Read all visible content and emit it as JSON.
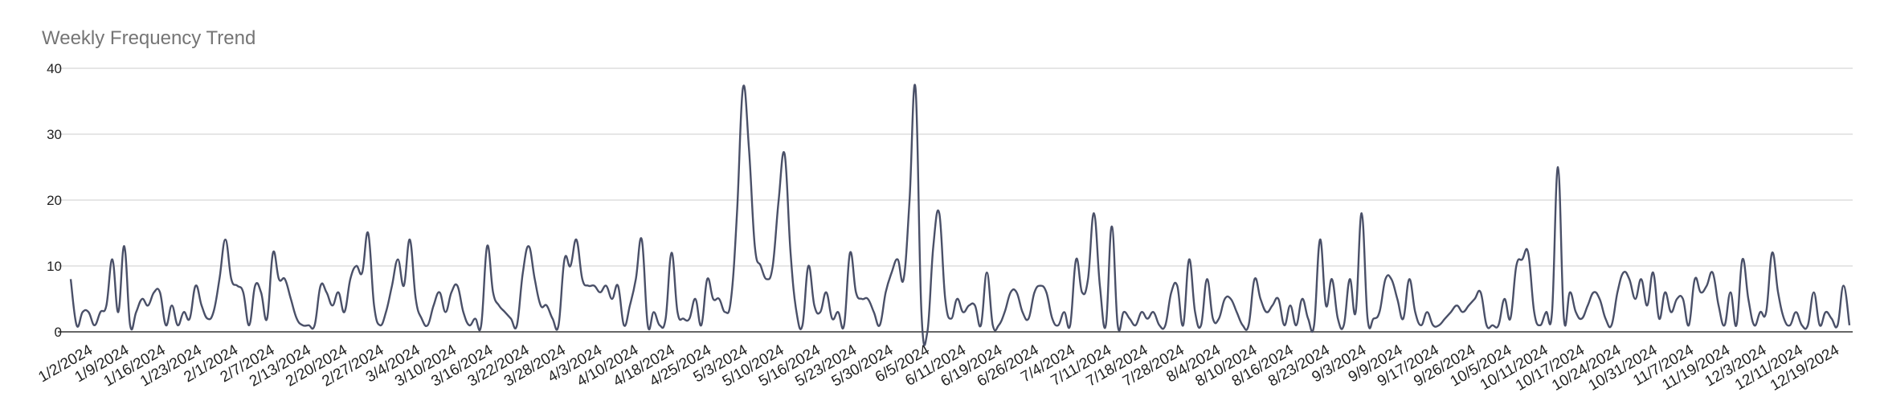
{
  "chart_data": {
    "type": "line",
    "title": "Weekly Frequency Trend",
    "xlabel": "",
    "ylabel": "",
    "ylim": [
      0,
      40
    ],
    "yticks": [
      0,
      10,
      20,
      30,
      40
    ],
    "grid": true,
    "legend": "none",
    "line_color": "#4a5068",
    "x_tick_labels": [
      "1/2/2024",
      "1/9/2024",
      "1/16/2024",
      "1/23/2024",
      "2/1/2024",
      "2/7/2024",
      "2/13/2024",
      "2/20/2024",
      "2/27/2024",
      "3/4/2024",
      "3/10/2024",
      "3/16/2024",
      "3/22/2024",
      "3/28/2024",
      "4/3/2024",
      "4/10/2024",
      "4/18/2024",
      "4/25/2024",
      "5/3/2024",
      "5/10/2024",
      "5/16/2024",
      "5/23/2024",
      "5/30/2024",
      "6/5/2024",
      "6/11/2024",
      "6/19/2024",
      "6/26/2024",
      "7/4/2024",
      "7/11/2024",
      "7/18/2024",
      "7/28/2024",
      "8/4/2024",
      "8/10/2024",
      "8/16/2024",
      "8/23/2024",
      "9/3/2024",
      "9/9/2024",
      "9/17/2024",
      "9/26/2024",
      "10/5/2024",
      "10/11/2024",
      "10/17/2024",
      "10/24/2024",
      "10/31/2024",
      "11/7/2024",
      "11/19/2024",
      "12/3/2024",
      "12/11/2024",
      "12/19/2024"
    ],
    "values": [
      8,
      1,
      3,
      3,
      1,
      3,
      4,
      11,
      3,
      13,
      1,
      3,
      5,
      4,
      6,
      6,
      1,
      4,
      1,
      3,
      2,
      7,
      4,
      2,
      3,
      8,
      14,
      8,
      7,
      6,
      1,
      7,
      6,
      2,
      12,
      8,
      8,
      5,
      2,
      1,
      1,
      1,
      7,
      6,
      4,
      6,
      3,
      8,
      10,
      9,
      15,
      4,
      1,
      3,
      7,
      11,
      7,
      14,
      5,
      2,
      1,
      4,
      6,
      3,
      6,
      7,
      3,
      1,
      2,
      1,
      13,
      6,
      4,
      3,
      2,
      1,
      9,
      13,
      8,
      4,
      4,
      2,
      1,
      11,
      10,
      14,
      8,
      7,
      7,
      6,
      7,
      5,
      7,
      1,
      4,
      8,
      14,
      1,
      3,
      1,
      2,
      12,
      3,
      2,
      2,
      5,
      1,
      8,
      5,
      5,
      3,
      5,
      18,
      37,
      28,
      13,
      10,
      8,
      10,
      20,
      27,
      12,
      3,
      1,
      10,
      4,
      3,
      6,
      2,
      3,
      1,
      12,
      6,
      5,
      5,
      3,
      1,
      6,
      9,
      11,
      8,
      20,
      37,
      3,
      0,
      13,
      18,
      5,
      2,
      5,
      3,
      4,
      4,
      1,
      9,
      1,
      1,
      3,
      6,
      6,
      3,
      2,
      6,
      7,
      6,
      2,
      1,
      3,
      1,
      11,
      6,
      8,
      18,
      7,
      1,
      16,
      1,
      3,
      2,
      1,
      3,
      2,
      3,
      1,
      1,
      6,
      7,
      1,
      11,
      3,
      1,
      8,
      2,
      2,
      5,
      5,
      3,
      1,
      1,
      8,
      5,
      3,
      4,
      5,
      1,
      4,
      1,
      5,
      2,
      1,
      14,
      4,
      8,
      2,
      1,
      8,
      3,
      18,
      2,
      2,
      3,
      8,
      8,
      5,
      2,
      8,
      3,
      1,
      3,
      1,
      1,
      2,
      3,
      4,
      3,
      4,
      5,
      6,
      1,
      1,
      1,
      5,
      2,
      10,
      11,
      12,
      3,
      1,
      3,
      3,
      25,
      2,
      6,
      3,
      2,
      4,
      6,
      5,
      2,
      1,
      6,
      9,
      8,
      5,
      8,
      4,
      9,
      2,
      6,
      3,
      5,
      5,
      1,
      8,
      6,
      7,
      9,
      4,
      1,
      6,
      1,
      11,
      5,
      1,
      3,
      3,
      12,
      6,
      2,
      1,
      3,
      1,
      1,
      6,
      1,
      3,
      2,
      1,
      7,
      1
    ]
  }
}
